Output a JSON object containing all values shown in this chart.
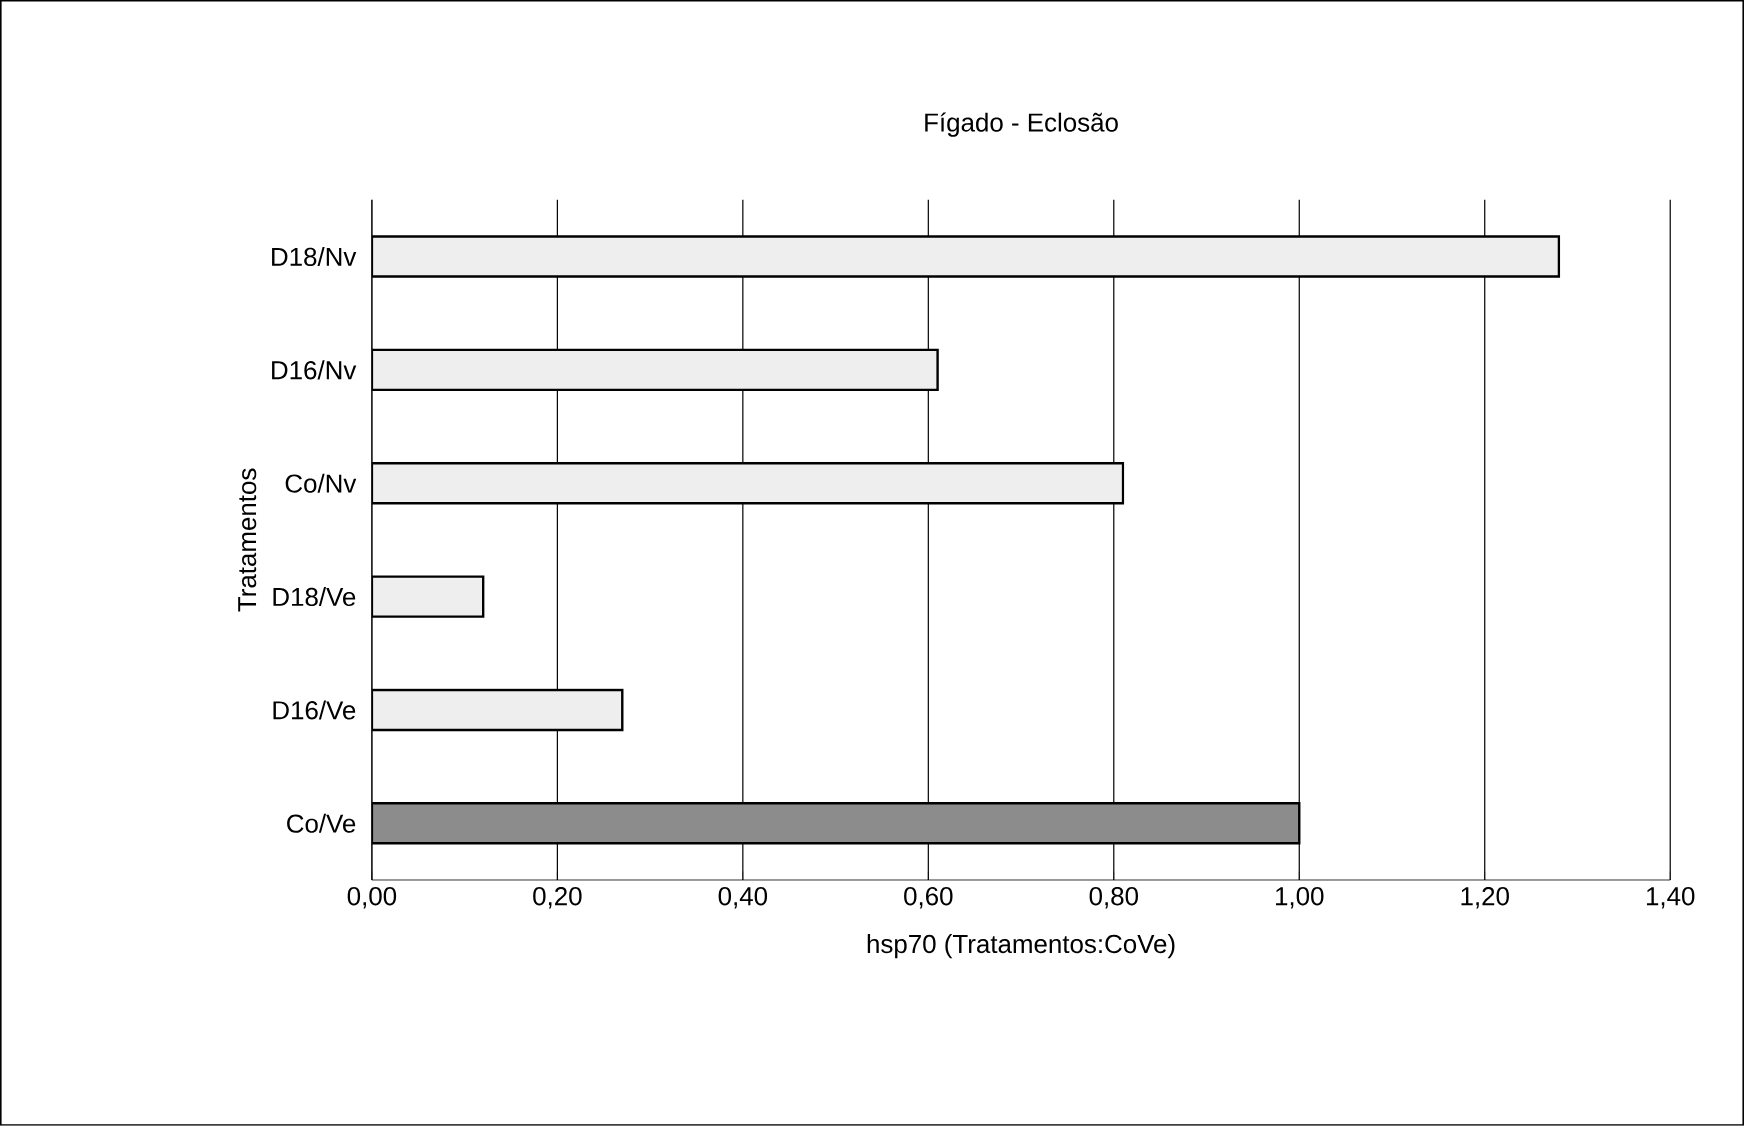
{
  "chart_data": {
    "type": "bar",
    "orientation": "horizontal",
    "title": "Fígado - Eclosão",
    "xlabel": "hsp70 (Tratamentos:CoVe)",
    "ylabel": "Tratamentos",
    "categories": [
      "D18/Nv",
      "D16/Nv",
      "Co/Nv",
      "D18/Ve",
      "D16/Ve",
      "Co/Ve"
    ],
    "values": [
      1.28,
      0.61,
      0.81,
      0.12,
      0.27,
      1.0
    ],
    "colors": [
      "#eeeeee",
      "#eeeeee",
      "#eeeeee",
      "#eeeeee",
      "#eeeeee",
      "#8c8c8c"
    ],
    "xlim": [
      0,
      1.4
    ],
    "xticks": [
      {
        "value": 0,
        "label": "0,00"
      },
      {
        "value": 0.2,
        "label": "0,20"
      },
      {
        "value": 0.4,
        "label": "0,40"
      },
      {
        "value": 0.6,
        "label": "0,60"
      },
      {
        "value": 0.8,
        "label": "0,80"
      },
      {
        "value": 1.0,
        "label": "1,00"
      },
      {
        "value": 1.2,
        "label": "1,20"
      },
      {
        "value": 1.4,
        "label": "1,40"
      }
    ],
    "grid": "x"
  }
}
